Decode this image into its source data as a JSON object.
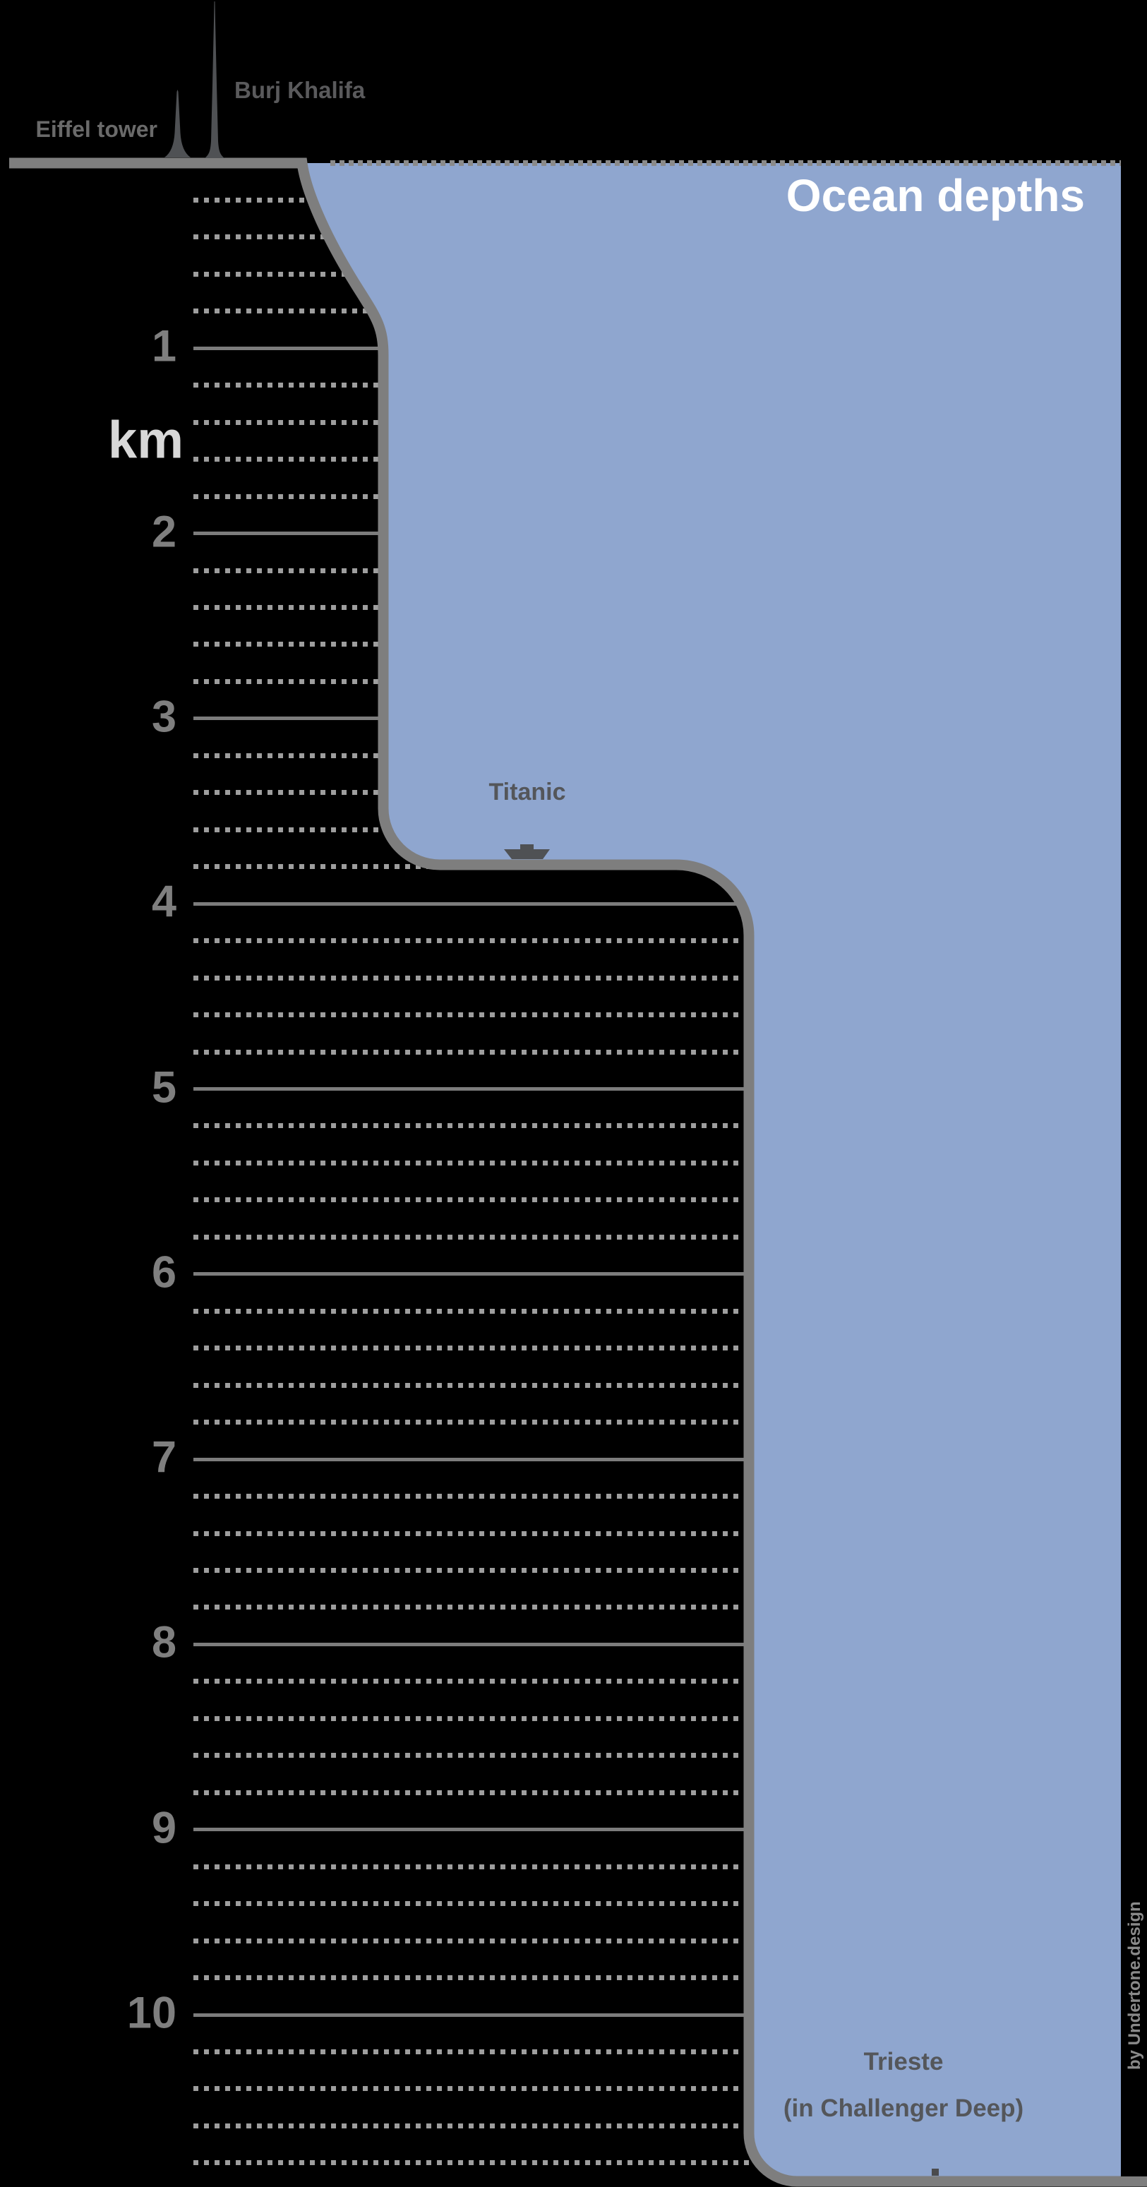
{
  "title": "Ocean depths",
  "unit_label": "km",
  "credit": "by Undertone.design",
  "landmarks": [
    {
      "label": "Eiffel tower"
    },
    {
      "label": "Burj Khalifa"
    }
  ],
  "features": [
    {
      "label": "Titanic"
    },
    {
      "label": "Trieste",
      "sublabel": "(in Challenger Deep)"
    }
  ],
  "scale": {
    "unit": "km",
    "major_ticks": [
      1,
      2,
      3,
      4,
      5,
      6,
      7,
      8,
      9,
      10
    ],
    "minor_step_km": 0.2,
    "min_minor_km": 0.2,
    "max_minor_km": 10.8
  },
  "colors": {
    "background": "#000000",
    "ocean": "#8FA6CF",
    "outline": "#7E7E7E",
    "solid_line": "#7C7C7C",
    "dotted_line": "#9E9E9E",
    "sea_dotted_line": "#8A8A8A",
    "tick_label": "#7F7F7F",
    "unit_label": "#D8D8D8",
    "title": "#FFFFFF",
    "eiffel_label": "#6A6A6A",
    "burj_label": "#5A5A5C",
    "wreck_label": "#54565A",
    "silhouette": "#4F5154",
    "marker": "#4B4B4D",
    "credit": "#8A8A8A"
  },
  "chart_data": {
    "type": "area",
    "title": "Ocean depths",
    "ylabel": "km",
    "y_axis": {
      "unit": "km",
      "major_ticks_km": [
        1,
        2,
        3,
        4,
        5,
        6,
        7,
        8,
        9,
        10
      ],
      "minor_step_km": 0.2,
      "range_km": [
        0,
        10.9
      ],
      "grid": "solid major lines, dotted minor lines"
    },
    "reference_heights_above_sea_level": [
      {
        "label": "Eiffel tower",
        "height_km": 0.33
      },
      {
        "label": "Burj Khalifa",
        "height_km": 0.83
      }
    ],
    "seafloor_profile_steps": [
      {
        "label": "first shelf (Titanic wreck level)",
        "depth_km": 3.8
      },
      {
        "label": "Challenger Deep floor",
        "depth_km": 10.9
      }
    ],
    "annotations": [
      {
        "label": "Titanic",
        "depth_km": 3.8,
        "marker": "ship silhouette on shelf"
      },
      {
        "label": "Trieste (in Challenger Deep)",
        "depth_km": 10.9,
        "marker": "small square on deep floor"
      }
    ],
    "legend_position": "none"
  }
}
